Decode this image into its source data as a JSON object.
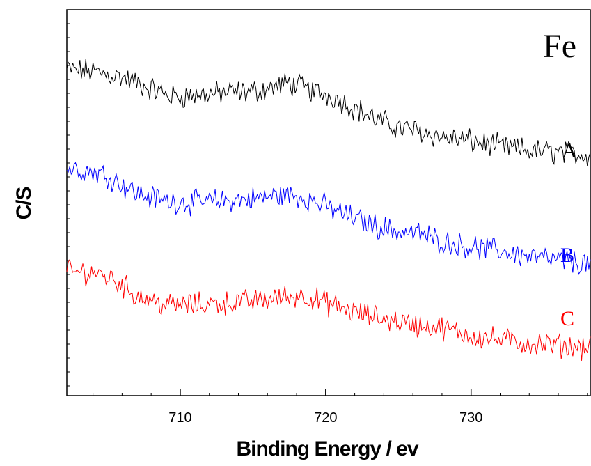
{
  "chart_data": {
    "type": "line",
    "title": "Fe",
    "xlabel": "Binding Energy / ev",
    "ylabel": "C/S",
    "xlim": [
      702.2,
      738.2
    ],
    "ylim": [
      0,
      1
    ],
    "grid": false,
    "x_ticks": [
      710,
      720,
      730
    ],
    "x_tick_labels": [
      "710",
      "720",
      "730"
    ],
    "y_tick_labels": [],
    "series": [
      {
        "name": "A",
        "color": "#000000",
        "x": [
          702.2,
          704,
          706,
          708,
          709.5,
          711,
          713,
          715,
          716.5,
          717.5,
          719,
          720.5,
          722,
          723.5,
          725,
          726.5,
          728,
          730,
          732,
          734,
          736,
          738.2
        ],
        "y": [
          0.845,
          0.84,
          0.825,
          0.795,
          0.775,
          0.778,
          0.785,
          0.788,
          0.8,
          0.81,
          0.79,
          0.775,
          0.745,
          0.715,
          0.695,
          0.685,
          0.67,
          0.66,
          0.645,
          0.635,
          0.63,
          0.625
        ]
      },
      {
        "name": "B",
        "color": "#0000ff",
        "x": [
          702.2,
          703.5,
          705,
          707,
          709,
          711,
          713,
          715,
          717,
          718.5,
          720,
          722,
          723.5,
          725,
          726.5,
          728,
          730,
          732,
          734,
          736,
          738.2
        ],
        "y": [
          0.59,
          0.585,
          0.57,
          0.525,
          0.505,
          0.5,
          0.505,
          0.51,
          0.52,
          0.515,
          0.49,
          0.46,
          0.44,
          0.425,
          0.42,
          0.4,
          0.385,
          0.375,
          0.36,
          0.35,
          0.34
        ]
      },
      {
        "name": "C",
        "color": "#ff0000",
        "x": [
          702.2,
          704,
          705.5,
          707,
          709,
          711,
          713,
          715,
          717,
          718.5,
          720,
          722,
          724,
          726,
          728,
          730,
          732,
          734,
          736,
          738.2
        ],
        "y": [
          0.32,
          0.32,
          0.3,
          0.26,
          0.235,
          0.235,
          0.24,
          0.245,
          0.255,
          0.26,
          0.24,
          0.215,
          0.2,
          0.185,
          0.175,
          0.155,
          0.145,
          0.135,
          0.13,
          0.125
        ]
      }
    ]
  }
}
